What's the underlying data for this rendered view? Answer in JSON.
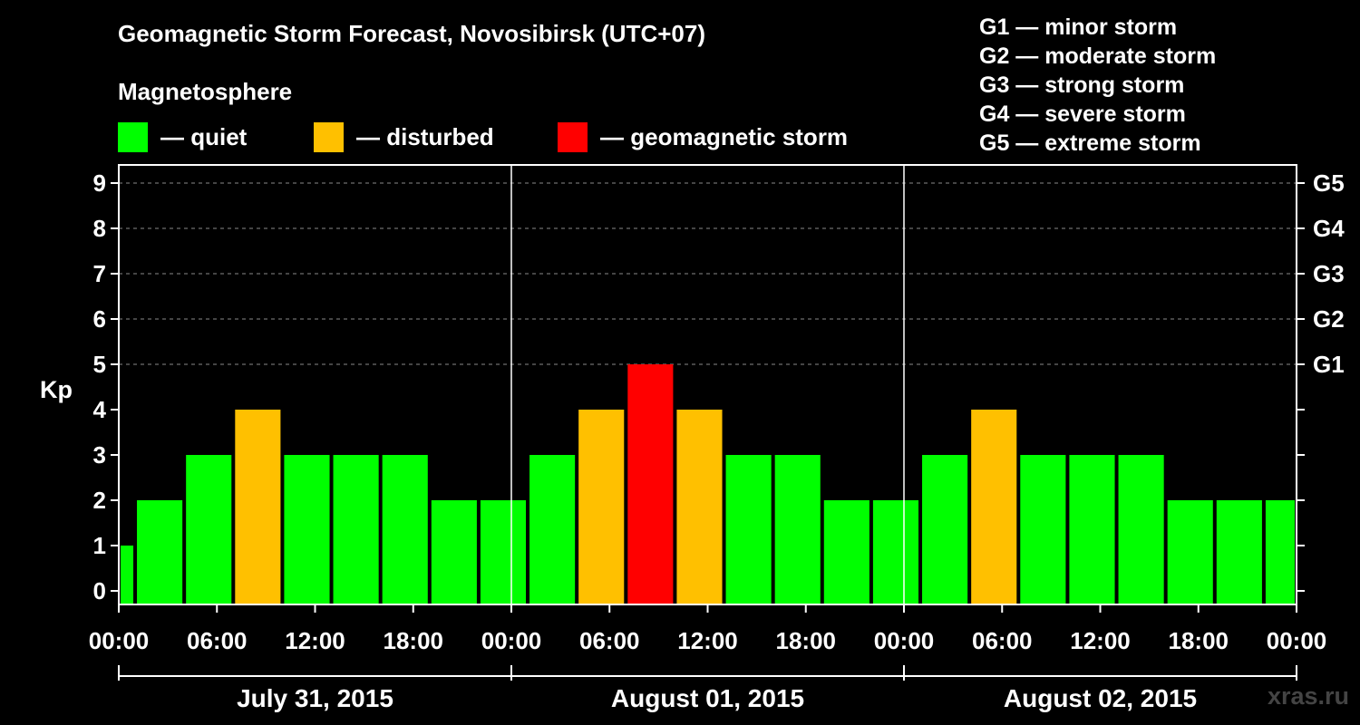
{
  "title": "Geomagnetic Storm Forecast, Novosibirsk (UTC+07)",
  "magnetosphere_label": "Magnetosphere",
  "legend": [
    {
      "label": "— quiet",
      "color": "#00ff00"
    },
    {
      "label": "— disturbed",
      "color": "#ffc000"
    },
    {
      "label": "— geomagnetic storm",
      "color": "#ff0000"
    }
  ],
  "g_scale": [
    "G1 — minor storm",
    "G2 — moderate storm",
    "G3 — strong storm",
    "G4 — severe storm",
    "G5 — extreme storm"
  ],
  "watermark": "xras.ru",
  "colors": {
    "quiet": "#00ff00",
    "disturbed": "#ffc000",
    "storm": "#ff0000"
  },
  "chart_data": {
    "type": "bar",
    "title": "Geomagnetic Storm Forecast, Novosibirsk (UTC+07)",
    "ylabel": "Kp",
    "ylim": [
      0,
      9
    ],
    "yticks": [
      "0",
      "1",
      "2",
      "3",
      "4",
      "5",
      "6",
      "7",
      "8",
      "9"
    ],
    "right_ticks": [
      {
        "kp": 5,
        "label": "G1"
      },
      {
        "kp": 6,
        "label": "G2"
      },
      {
        "kp": 7,
        "label": "G3"
      },
      {
        "kp": 8,
        "label": "G4"
      },
      {
        "kp": 9,
        "label": "G5"
      }
    ],
    "x_start_hour": 0,
    "x_total_hours": 72,
    "xticks": [
      {
        "hour": 0,
        "label": "00:00"
      },
      {
        "hour": 6,
        "label": "06:00"
      },
      {
        "hour": 12,
        "label": "12:00"
      },
      {
        "hour": 18,
        "label": "18:00"
      },
      {
        "hour": 24,
        "label": "00:00"
      },
      {
        "hour": 30,
        "label": "06:00"
      },
      {
        "hour": 36,
        "label": "12:00"
      },
      {
        "hour": 42,
        "label": "18:00"
      },
      {
        "hour": 48,
        "label": "00:00"
      },
      {
        "hour": 54,
        "label": "06:00"
      },
      {
        "hour": 60,
        "label": "12:00"
      },
      {
        "hour": 66,
        "label": "18:00"
      },
      {
        "hour": 72,
        "label": "00:00"
      }
    ],
    "days": [
      {
        "label": "July 31, 2015",
        "start_hour": 0,
        "end_hour": 24
      },
      {
        "label": "August 01, 2015",
        "start_hour": 24,
        "end_hour": 48
      },
      {
        "label": "August 02, 2015",
        "start_hour": 48,
        "end_hour": 72
      }
    ],
    "bars": [
      {
        "start_hour": 0,
        "end_hour": 1,
        "kp": 1,
        "level": "quiet"
      },
      {
        "start_hour": 1,
        "end_hour": 4,
        "kp": 2,
        "level": "quiet"
      },
      {
        "start_hour": 4,
        "end_hour": 7,
        "kp": 3,
        "level": "quiet"
      },
      {
        "start_hour": 7,
        "end_hour": 10,
        "kp": 4,
        "level": "disturbed"
      },
      {
        "start_hour": 10,
        "end_hour": 13,
        "kp": 3,
        "level": "quiet"
      },
      {
        "start_hour": 13,
        "end_hour": 16,
        "kp": 3,
        "level": "quiet"
      },
      {
        "start_hour": 16,
        "end_hour": 19,
        "kp": 3,
        "level": "quiet"
      },
      {
        "start_hour": 19,
        "end_hour": 22,
        "kp": 2,
        "level": "quiet"
      },
      {
        "start_hour": 22,
        "end_hour": 25,
        "kp": 2,
        "level": "quiet"
      },
      {
        "start_hour": 25,
        "end_hour": 28,
        "kp": 3,
        "level": "quiet"
      },
      {
        "start_hour": 28,
        "end_hour": 31,
        "kp": 4,
        "level": "disturbed"
      },
      {
        "start_hour": 31,
        "end_hour": 34,
        "kp": 5,
        "level": "storm"
      },
      {
        "start_hour": 34,
        "end_hour": 37,
        "kp": 4,
        "level": "disturbed"
      },
      {
        "start_hour": 37,
        "end_hour": 40,
        "kp": 3,
        "level": "quiet"
      },
      {
        "start_hour": 40,
        "end_hour": 43,
        "kp": 3,
        "level": "quiet"
      },
      {
        "start_hour": 43,
        "end_hour": 46,
        "kp": 2,
        "level": "quiet"
      },
      {
        "start_hour": 46,
        "end_hour": 49,
        "kp": 2,
        "level": "quiet"
      },
      {
        "start_hour": 49,
        "end_hour": 52,
        "kp": 3,
        "level": "quiet"
      },
      {
        "start_hour": 52,
        "end_hour": 55,
        "kp": 4,
        "level": "disturbed"
      },
      {
        "start_hour": 55,
        "end_hour": 58,
        "kp": 3,
        "level": "quiet"
      },
      {
        "start_hour": 58,
        "end_hour": 61,
        "kp": 3,
        "level": "quiet"
      },
      {
        "start_hour": 61,
        "end_hour": 64,
        "kp": 3,
        "level": "quiet"
      },
      {
        "start_hour": 64,
        "end_hour": 67,
        "kp": 2,
        "level": "quiet"
      },
      {
        "start_hour": 67,
        "end_hour": 70,
        "kp": 2,
        "level": "quiet"
      },
      {
        "start_hour": 70,
        "end_hour": 72,
        "kp": 2,
        "level": "quiet"
      }
    ]
  }
}
